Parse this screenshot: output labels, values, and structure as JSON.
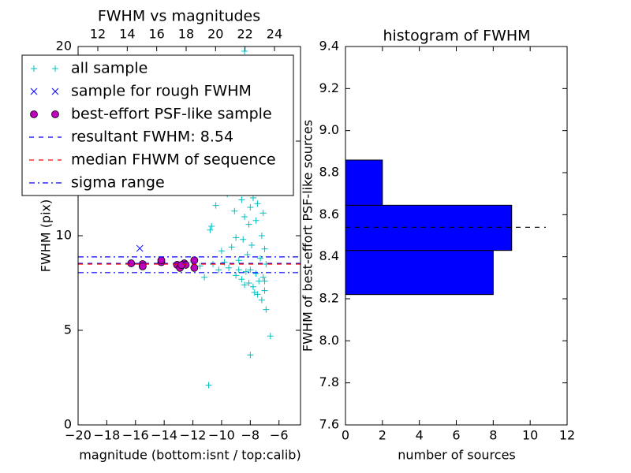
{
  "chart_data": [
    {
      "type": "scatter",
      "title": "FWHM vs magnitudes",
      "x_label": "magnitude (bottom:isnt / top:calib)",
      "y_label": "FWHM (pix)",
      "xlim": [
        -20,
        -4.5
      ],
      "xticks": [
        {
          "value": -20,
          "label": "−20"
        },
        {
          "value": -18,
          "label": "−18"
        },
        {
          "value": -16,
          "label": "−16"
        },
        {
          "value": -14,
          "label": "−14"
        },
        {
          "value": -12,
          "label": "−12"
        },
        {
          "value": -10,
          "label": "−10"
        },
        {
          "value": -8,
          "label": "−8"
        },
        {
          "value": -6,
          "label": "−6"
        }
      ],
      "x2lim": [
        10.66,
        25.77
      ],
      "x2ticks": [
        12,
        14,
        16,
        18,
        20,
        22,
        24
      ],
      "ylim": [
        0,
        20
      ],
      "yticks": [
        0,
        5,
        10,
        15,
        20
      ],
      "legend": "upper left",
      "series": [
        {
          "name": "all sample",
          "color": "#00bfbf",
          "marker": "+",
          "x": [
            -10.9,
            -8.0,
            -6.6,
            -8.4,
            -6.9,
            -7.2,
            -7.5,
            -7.0,
            -7.8,
            -8.1,
            -7.4,
            -8.6,
            -7.1,
            -9.0,
            -7.6,
            -8.3,
            -8.0,
            -10.2,
            -9.5,
            -11.5,
            -10.6,
            -9.8,
            -8.8,
            -7.3,
            -8.2,
            -10.0,
            -9.3,
            -7.9,
            -8.5,
            -7.2,
            -10.8,
            -10.7,
            -8.1,
            -7.6,
            -8.4,
            -7.1,
            -9.1,
            -8.0,
            -7.5,
            -10.4,
            -8.6,
            -7.8,
            -9.6,
            -7.3,
            -8.3,
            -7.7,
            -7.9,
            -8.9,
            -7.4,
            -8.2,
            -7.6,
            -8.0,
            -7.2,
            -7.8,
            -8.7,
            -7.5,
            -9.0,
            -8.8,
            -7.0,
            -6.9,
            -11.2,
            -12.0,
            -8.4,
            -7.7,
            -7.0
          ],
          "values": [
            2.1,
            3.7,
            4.7,
            19.75,
            6.1,
            6.6,
            6.9,
            7.1,
            7.3,
            7.5,
            7.6,
            7.7,
            7.8,
            7.9,
            8.0,
            8.1,
            8.2,
            8.2,
            8.3,
            8.4,
            8.5,
            8.6,
            8.7,
            8.8,
            9.0,
            9.2,
            9.4,
            9.5,
            9.8,
            10.0,
            10.3,
            10.5,
            10.6,
            10.8,
            11.0,
            11.2,
            11.3,
            11.5,
            11.7,
            11.6,
            11.9,
            12.0,
            12.2,
            12.3,
            12.5,
            12.7,
            13.0,
            13.2,
            13.5,
            14.0,
            14.6,
            15.5,
            16.4,
            17.8,
            18.6,
            19.2,
            9.9,
            8.2,
            9.3,
            8.5,
            7.8,
            8.6,
            7.4,
            7.0,
            7.6
          ]
        },
        {
          "name": "sample for rough FWHM",
          "color": "#0000ff",
          "marker": "x",
          "x": [
            -15.7
          ],
          "values": [
            9.33
          ]
        },
        {
          "name": "best-effort PSF-like sample",
          "color": "#bf00bf",
          "marker": "o",
          "x": [
            -16.3,
            -15.5,
            -15.5,
            -14.2,
            -14.2,
            -13.1,
            -12.9,
            -12.6,
            -12.5,
            -11.9,
            -11.9,
            -12.8
          ],
          "values": [
            8.54,
            8.5,
            8.38,
            8.6,
            8.7,
            8.46,
            8.3,
            8.54,
            8.46,
            8.7,
            8.3,
            8.45
          ]
        },
        {
          "name": "resultant FWHM: 8.54",
          "color": "#0000ff",
          "line": "dashed",
          "values": [
            8.54
          ]
        },
        {
          "name": "median FHWM of sequence",
          "color": "#ff0000",
          "line": "dashed",
          "values": [
            8.5
          ]
        },
        {
          "name": "sigma range",
          "color": "#0000ff",
          "line": "dashdot",
          "values": [
            8.05,
            8.88
          ]
        }
      ]
    },
    {
      "type": "histogram",
      "orientation": "horizontal",
      "title": "histogram of FWHM",
      "x_label": "number of sources",
      "y_label": "FWHM of best-effort PSF-like sources",
      "xlim": [
        0,
        12
      ],
      "xticks": [
        0,
        2,
        4,
        6,
        8,
        10,
        12
      ],
      "ylim": [
        7.6,
        9.4
      ],
      "yticks": [
        7.6,
        7.8,
        {
          "value": 8,
          "label": "8.0"
        },
        8.2,
        8.4,
        8.6,
        8.8,
        {
          "value": 9,
          "label": "9.0"
        },
        9.2,
        9.4
      ],
      "bins": [
        8.22,
        8.43,
        8.645,
        8.86
      ],
      "values": [
        8,
        9,
        2
      ],
      "color": "#0000ff",
      "hline": 8.54,
      "hline_color": "#000000"
    }
  ]
}
